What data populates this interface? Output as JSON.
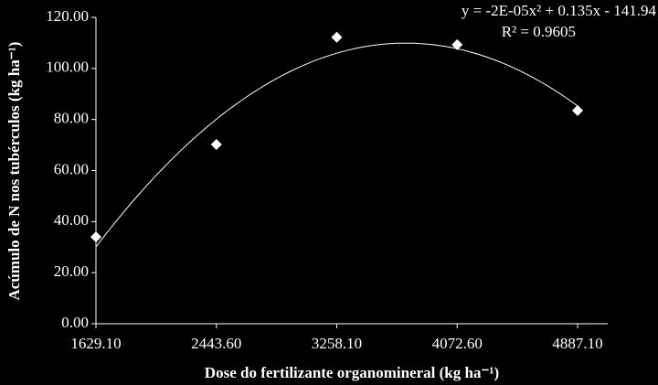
{
  "chart_data": {
    "type": "scatter",
    "x_label": "Dose do fertilizante  organomineral (kg ha⁻¹)",
    "y_label": "Acúmulo de N nos tubérculos  (kg ha⁻¹)",
    "equation": "y = -2E-05x² + 0.135x - 141.94",
    "r_squared": "R² = 0.9605",
    "x": [
      1629.1,
      2443.6,
      3258.1,
      4072.6,
      4887.1
    ],
    "values": [
      34.0,
      70.2,
      112.2,
      109.3,
      83.5
    ],
    "color": "#ffffff",
    "trendline": "polynomial",
    "xlim": [
      1629.1,
      5091
    ],
    "ylim": [
      0,
      120
    ],
    "xticks": [
      {
        "value": 1629.1,
        "label": "1629.10"
      },
      {
        "value": 2443.6,
        "label": "2443.60"
      },
      {
        "value": 3258.1,
        "label": "3258.10"
      },
      {
        "value": 4072.6,
        "label": "4072.60"
      },
      {
        "value": 4887.1,
        "label": "4887.10"
      }
    ],
    "yticks": [
      {
        "value": 0,
        "label": "0.00"
      },
      {
        "value": 20,
        "label": "20.00"
      },
      {
        "value": 40,
        "label": "40.00"
      },
      {
        "value": 60,
        "label": "60.00"
      },
      {
        "value": 80,
        "label": "80.00"
      },
      {
        "value": 100,
        "label": "100.00"
      },
      {
        "value": 120,
        "label": "120.00"
      }
    ]
  }
}
